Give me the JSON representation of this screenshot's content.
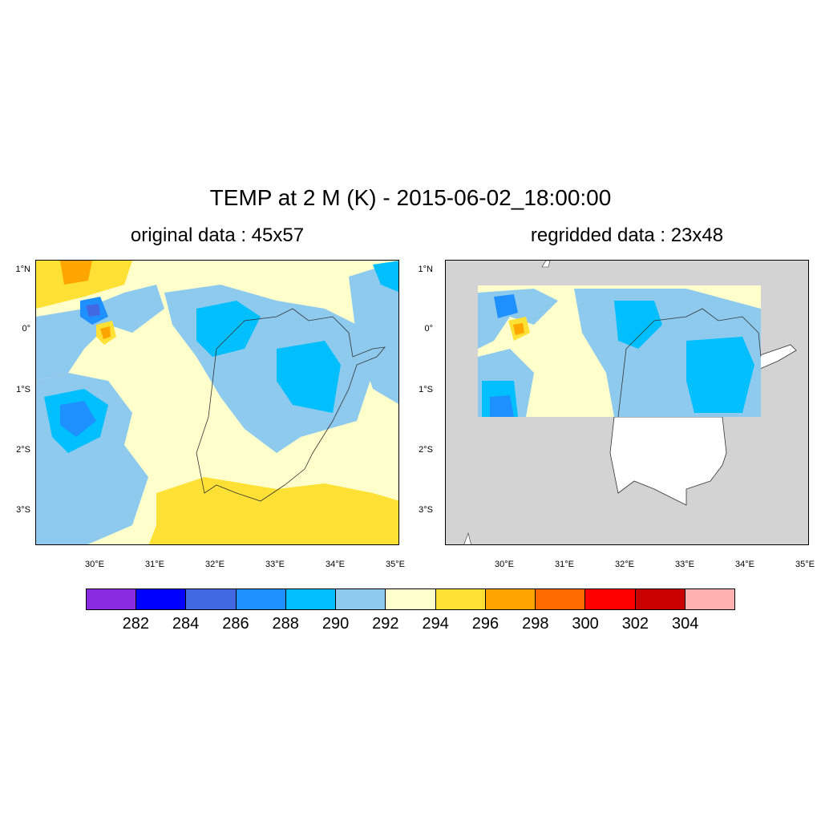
{
  "title": "TEMP at 2 M (K) - 2015-06-02_18:00:00",
  "panels": [
    {
      "subtitle": "original data : 45x57"
    },
    {
      "subtitle": "regridded data : 23x48"
    }
  ],
  "lat_labels": [
    "1°N",
    "0°",
    "1°S",
    "2°S",
    "3°S"
  ],
  "lon_labels": [
    "30°E",
    "31°E",
    "32°E",
    "33°E",
    "34°E",
    "35°E"
  ],
  "colorbar": {
    "labels": [
      "282",
      "284",
      "286",
      "288",
      "290",
      "292",
      "294",
      "296",
      "298",
      "300",
      "302",
      "304"
    ],
    "colors": [
      "#8a2be2",
      "#0000ff",
      "#4169e1",
      "#1e90ff",
      "#00bfff",
      "#8ecaee",
      "#ffffcc",
      "#ffe135",
      "#ffa500",
      "#ff6a00",
      "#ff0000",
      "#c80000",
      "#ffb0b0"
    ]
  },
  "map": {
    "land_mask_color": "#d3d3d3",
    "lon_range": [
      29.0,
      35.05
    ],
    "lat_range": [
      -3.6,
      1.15
    ]
  }
}
